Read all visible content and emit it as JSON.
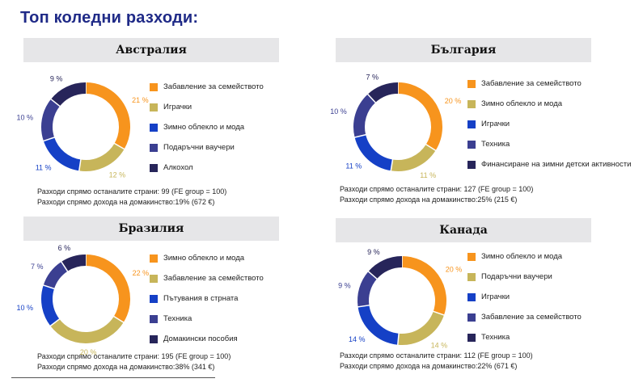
{
  "page": {
    "title": "Топ коледни разходи:"
  },
  "colors": {
    "orange": "#f7941d",
    "tan": "#c7b55a",
    "blue": "#1540c6",
    "indigo": "#3b3f91",
    "navy": "#27255a",
    "header_bg": "#e6e6e8",
    "title": "#1f2a87"
  },
  "chart_data": [
    {
      "type": "pie",
      "title": "Австралия",
      "categories": [
        "Забавление за семейството",
        "Играчки",
        "Зимно облекло и мода",
        "Подаръчни ваучери",
        "Алкохол"
      ],
      "values": [
        21,
        12,
        11,
        10,
        9
      ],
      "value_labels": [
        "21 %",
        "12 %",
        "11 %",
        "10 %",
        "9 %"
      ],
      "colors": [
        "#f7941d",
        "#c7b55a",
        "#1540c6",
        "#3b3f91",
        "#27255a"
      ],
      "notes": [
        "Разходи спрямо останалите страни: 99 (FE group = 100)",
        "Разходи спрямо дохода на домакинство:19% (672 €)"
      ]
    },
    {
      "type": "pie",
      "title": "България",
      "categories": [
        "Забавление за семейството",
        "Зимно облекло и мода",
        "Играчки",
        "Техника",
        "Финансиране на зимни детски активности"
      ],
      "values": [
        20,
        11,
        11,
        10,
        7
      ],
      "value_labels": [
        "20 %",
        "11 %",
        "11 %",
        "10 %",
        "7 %"
      ],
      "colors": [
        "#f7941d",
        "#c7b55a",
        "#1540c6",
        "#3b3f91",
        "#27255a"
      ],
      "notes": [
        "Разходи спрямо останалите страни: 127 (FE group = 100)",
        "Разходи спрямо дохода на домакинство:25% (215 €)"
      ]
    },
    {
      "type": "pie",
      "title": "Бразилия",
      "categories": [
        "Зимно облекло и мода",
        "Забавление за семейството",
        "Пътувания в стрната",
        "Техника",
        "Домакински пособия"
      ],
      "values": [
        22,
        20,
        10,
        7,
        6
      ],
      "value_labels": [
        "22 %",
        "20 %",
        "10 %",
        "7 %",
        "6 %"
      ],
      "colors": [
        "#f7941d",
        "#c7b55a",
        "#1540c6",
        "#3b3f91",
        "#27255a"
      ],
      "notes": [
        "Разходи спрямо останалите страни: 195 (FE group = 100)",
        "Разходи спрямо дохода на домакинство:38% (341 €)"
      ]
    },
    {
      "type": "pie",
      "title": "Канада",
      "categories": [
        "Зимно облекло и мода",
        "Подаръчни ваучери",
        "Играчки",
        "Забавление за семейството",
        "Техника"
      ],
      "values": [
        20,
        14,
        14,
        9,
        9
      ],
      "value_labels": [
        "20 %",
        "14 %",
        "14 %",
        "9 %",
        "9 %"
      ],
      "colors": [
        "#f7941d",
        "#c7b55a",
        "#1540c6",
        "#3b3f91",
        "#27255a"
      ],
      "notes": [
        "Разходи спрямо останалите страни: 112 (FE group = 100)",
        "Разходи спрямо дохода на домакинство:22% (671 €)"
      ]
    }
  ]
}
